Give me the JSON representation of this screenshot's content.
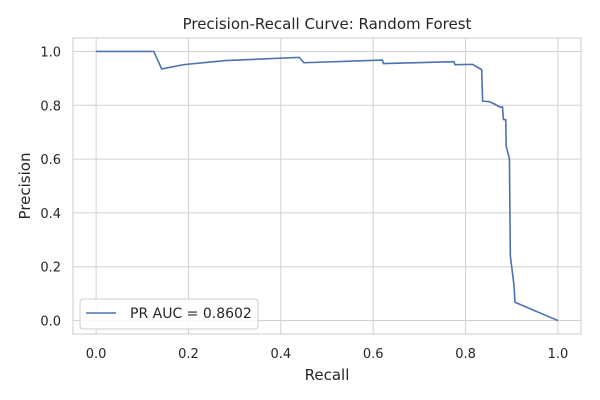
{
  "chart_data": {
    "type": "line",
    "title": "Precision-Recall Curve: Random Forest",
    "xlabel": "Recall",
    "ylabel": "Precision",
    "xlim": [
      -0.05,
      1.05
    ],
    "ylim": [
      -0.05,
      1.05
    ],
    "xticks": [
      0.0,
      0.2,
      0.4,
      0.6,
      0.8,
      1.0
    ],
    "yticks": [
      0.0,
      0.2,
      0.4,
      0.6,
      0.8,
      1.0
    ],
    "xtick_labels": [
      "0.0",
      "0.2",
      "0.4",
      "0.6",
      "0.8",
      "1.0"
    ],
    "ytick_labels": [
      "0.0",
      "0.2",
      "0.4",
      "0.6",
      "0.8",
      "1.0"
    ],
    "grid": true,
    "legend_position": "lower-left",
    "series": [
      {
        "name": "PR AUC = 0.8602",
        "color": "#4c72b0",
        "x": [
          0.0,
          0.125,
          0.142,
          0.19,
          0.28,
          0.44,
          0.45,
          0.62,
          0.622,
          0.775,
          0.777,
          0.815,
          0.835,
          0.837,
          0.85,
          0.86,
          0.875,
          0.88,
          0.882,
          0.887,
          0.888,
          0.895,
          0.897,
          0.905,
          0.907,
          1.0
        ],
        "y": [
          1.0,
          1.0,
          0.935,
          0.951,
          0.966,
          0.978,
          0.958,
          0.968,
          0.955,
          0.962,
          0.951,
          0.952,
          0.932,
          0.815,
          0.814,
          0.807,
          0.793,
          0.794,
          0.747,
          0.747,
          0.648,
          0.601,
          0.24,
          0.13,
          0.068,
          0.0
        ]
      }
    ]
  }
}
